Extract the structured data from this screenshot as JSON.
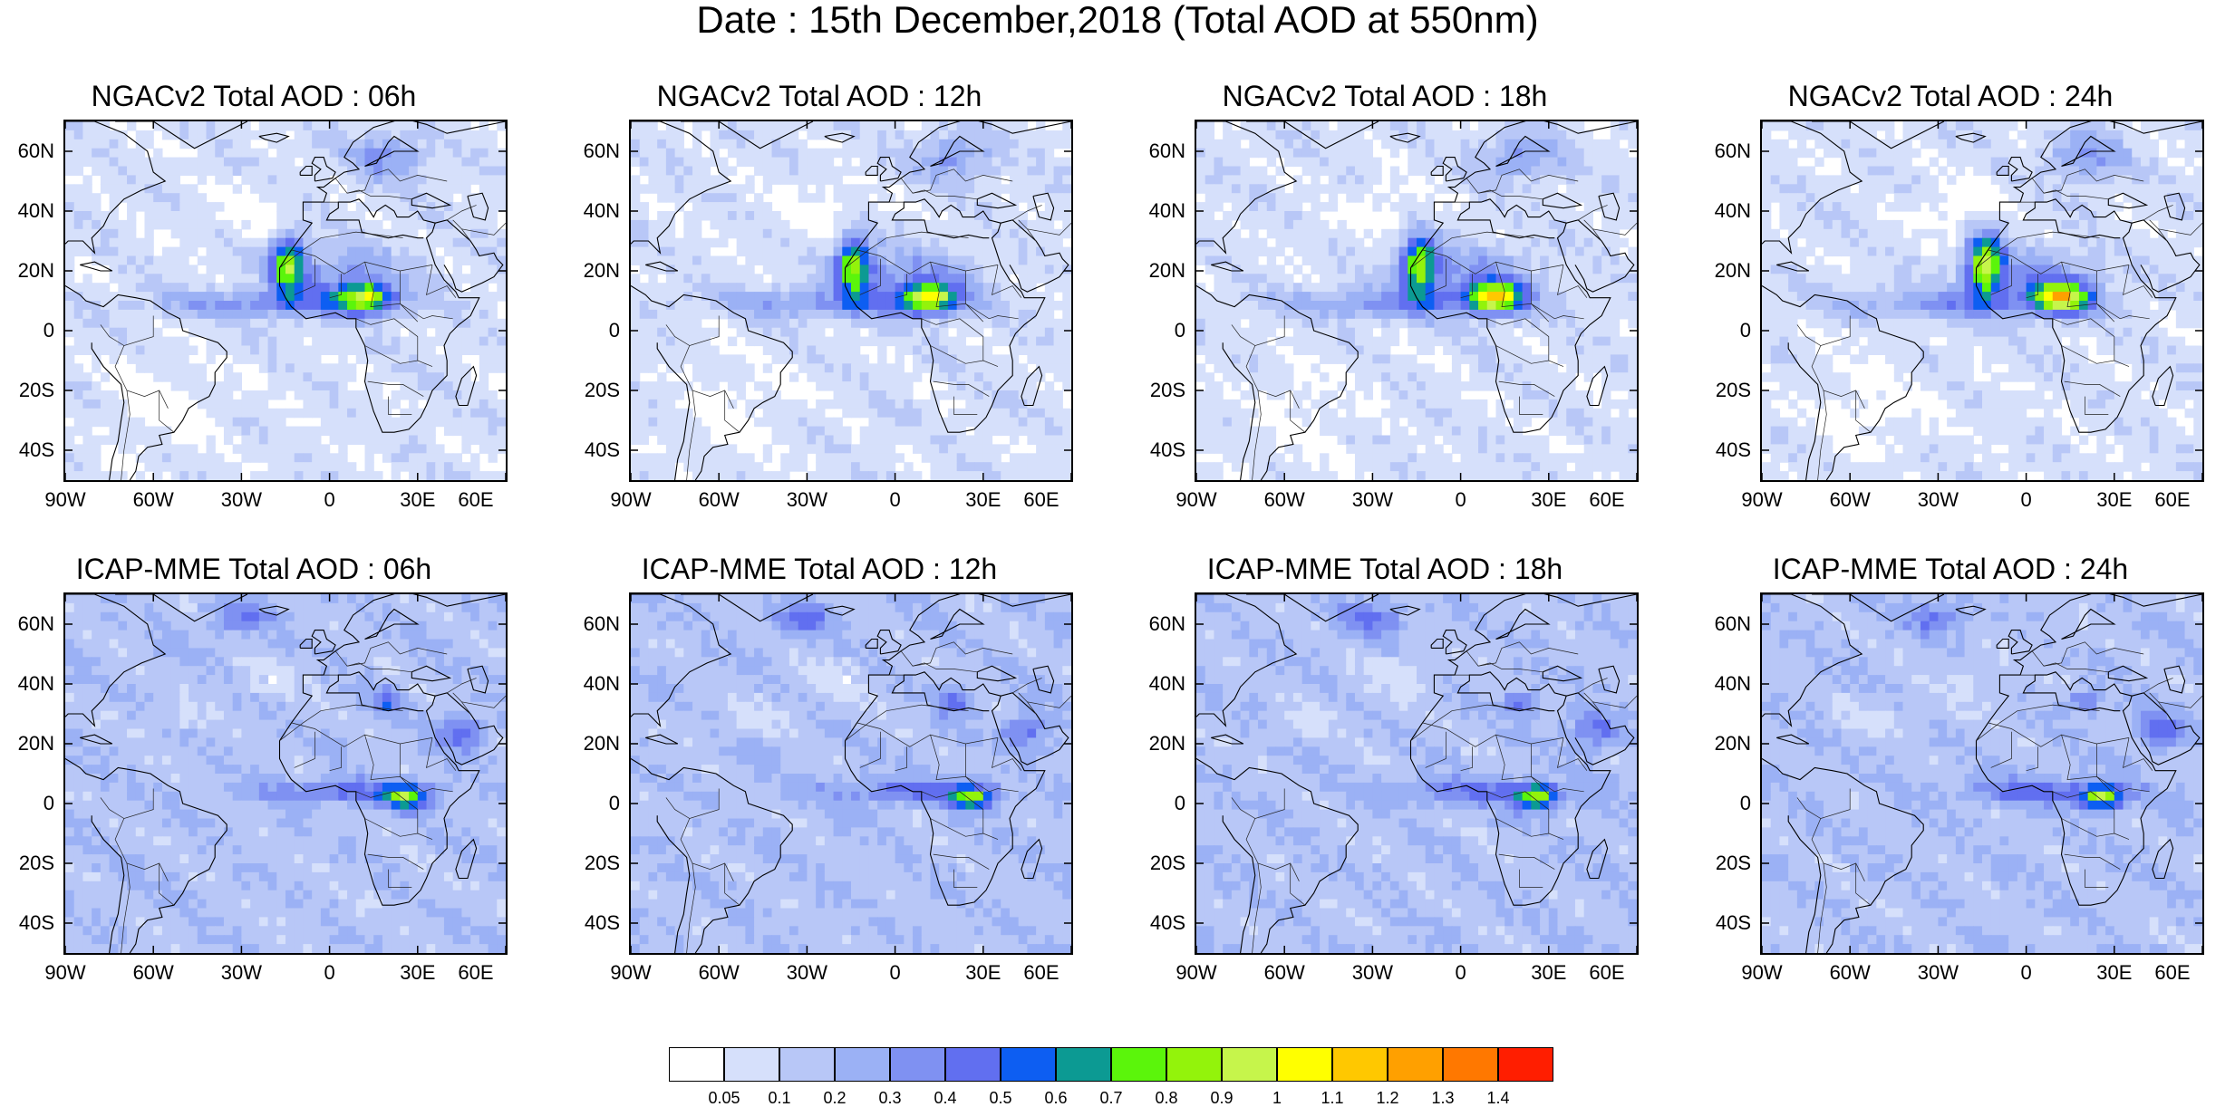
{
  "title": "Date : 15th December,2018 (Total AOD at 550nm)",
  "map_axes": {
    "lon_range": [
      -90,
      60
    ],
    "lat_range": [
      -50,
      70
    ],
    "lat_ticks": [
      {
        "value": 60,
        "label": "60N"
      },
      {
        "value": 40,
        "label": "40N"
      },
      {
        "value": 20,
        "label": "20N"
      },
      {
        "value": 0,
        "label": "0"
      },
      {
        "value": -20,
        "label": "20S"
      },
      {
        "value": -40,
        "label": "40S"
      }
    ],
    "lon_ticks": [
      {
        "value": -90,
        "label": "90W"
      },
      {
        "value": -60,
        "label": "60W"
      },
      {
        "value": -30,
        "label": "30W"
      },
      {
        "value": 0,
        "label": "0"
      },
      {
        "value": 30,
        "label": "30E"
      },
      {
        "value": 60,
        "label": "60E"
      }
    ]
  },
  "panels": [
    {
      "title": "NGACv2 Total AOD : 06h",
      "model": "NGACv2"
    },
    {
      "title": "NGACv2 Total AOD : 12h",
      "model": "NGACv2"
    },
    {
      "title": "NGACv2 Total AOD : 18h",
      "model": "NGACv2"
    },
    {
      "title": "NGACv2 Total AOD : 24h",
      "model": "NGACv2"
    },
    {
      "title": "ICAP-MME Total AOD : 06h",
      "model": "ICAP-MME"
    },
    {
      "title": "ICAP-MME Total AOD : 12h",
      "model": "ICAP-MME"
    },
    {
      "title": "ICAP-MME Total AOD : 18h",
      "model": "ICAP-MME"
    },
    {
      "title": "ICAP-MME Total AOD : 24h",
      "model": "ICAP-MME"
    }
  ],
  "colorbar": {
    "colors": [
      "#ffffff",
      "#d6e0fb",
      "#b8c7f7",
      "#9bb1f5",
      "#7f91f2",
      "#616ff0",
      "#0d5ef2",
      "#0c9a93",
      "#5bf50b",
      "#93f30b",
      "#c6f54b",
      "#ffff00",
      "#ffc800",
      "#ffa000",
      "#ff7800",
      "#ff1e00"
    ],
    "labels": [
      "0.05",
      "0.1",
      "0.2",
      "0.3",
      "0.4",
      "0.5",
      "0.6",
      "0.7",
      "0.8",
      "0.9",
      "1",
      "1.1",
      "1.2",
      "1.3",
      "1.4"
    ]
  }
}
